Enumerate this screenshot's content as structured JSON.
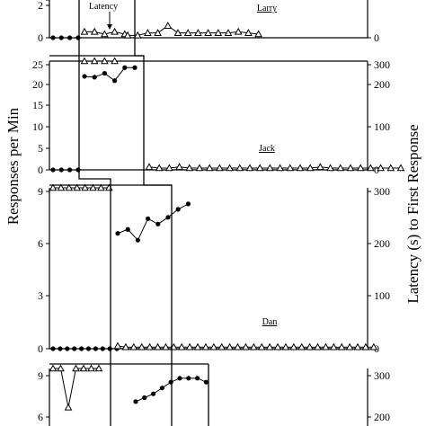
{
  "chart_data": [
    {
      "type": "line",
      "participant": "Larry",
      "left_axis": {
        "ylim": [
          0,
          4
        ],
        "ticks": [
          "0",
          "2"
        ]
      },
      "right_axis": {
        "ylim": [
          0,
          300
        ],
        "ticks": [
          "0"
        ]
      },
      "series": [
        {
          "name": "Responses per Min",
          "axis": "left",
          "marker": "circle",
          "segments": [
            [
              0,
              0,
              0,
              0
            ]
          ]
        },
        {
          "name": "Latency",
          "axis": "right",
          "marker": "triangle",
          "segments": [
            [
              25,
              25,
              15,
              25,
              15
            ],
            [
              10,
              10,
              20,
              20,
              50,
              20,
              20,
              20,
              20,
              20,
              20,
              25,
              20,
              15
            ]
          ]
        }
      ],
      "annotation": "Latency"
    },
    {
      "type": "line",
      "participant": "Jack",
      "left_axis": {
        "ylim": [
          0,
          25
        ],
        "ticks": [
          "0",
          "5",
          "10",
          "15",
          "20",
          "25"
        ]
      },
      "right_axis": {
        "ylim": [
          0,
          300
        ],
        "ticks": [
          "0",
          "100",
          "200",
          "300"
        ]
      },
      "series": [
        {
          "name": "Responses per Min",
          "axis": "left",
          "marker": "circle",
          "segments": [
            [
              0,
              0,
              0,
              0
            ],
            [
              21.5,
              21.3,
              22.2,
              20.5,
              23.5,
              23.5
            ]
          ]
        },
        {
          "name": "Latency",
          "axis": "right",
          "marker": "triangle",
          "segments": [
            [
              300,
              300,
              300,
              300
            ],
            [
              8,
              5,
              5,
              8,
              5,
              5,
              5,
              5,
              5,
              5,
              5,
              5,
              5,
              5,
              5,
              5,
              5,
              8,
              5,
              5,
              5,
              5,
              5,
              5,
              5,
              5
            ]
          ]
        }
      ]
    },
    {
      "type": "line",
      "participant": "Dan",
      "left_axis": {
        "ylim": [
          0,
          12
        ],
        "ticks": [
          "0",
          "3",
          "6",
          "9",
          "12"
        ]
      },
      "right_axis": {
        "ylim": [
          0,
          300
        ],
        "ticks": [
          "0",
          "100",
          "200",
          "300"
        ]
      },
      "series": [
        {
          "name": "Responses per Min",
          "axis": "left",
          "marker": "circle",
          "segments": [
            [
              0,
              0,
              0,
              0,
              0,
              0,
              0,
              0,
              0,
              0
            ],
            [
              8.6,
              8.9,
              8.1,
              9.7,
              9.3,
              9.8,
              10.4,
              10.8
            ]
          ]
        },
        {
          "name": "Latency",
          "axis": "right",
          "marker": "triangle",
          "segments": [
            [
              300,
              300,
              300,
              300,
              300,
              300,
              300,
              300
            ],
            [
              5,
              3,
              3,
              3,
              3,
              3,
              3,
              3,
              3,
              3,
              3,
              3,
              3,
              3,
              3,
              3,
              3,
              3,
              3,
              3,
              3,
              3,
              3,
              3,
              3,
              3,
              3,
              3,
              3,
              3,
              3,
              3,
              3
            ]
          ]
        }
      ]
    },
    {
      "type": "line",
      "participant": "",
      "left_axis": {
        "ylim": [
          3,
          9
        ],
        "ticks": [
          "6",
          "9"
        ]
      },
      "right_axis": {
        "ylim": [
          0,
          300
        ],
        "ticks": [
          "200",
          "300"
        ]
      },
      "series": [
        {
          "name": "Responses per Min",
          "axis": "left",
          "marker": "circle",
          "segments": [
            [
              7.3,
              7.5,
              7.7,
              8.0,
              8.3,
              8.5,
              8.5,
              8.5,
              8.3
            ]
          ]
        },
        {
          "name": "Latency",
          "axis": "right",
          "marker": "triangle",
          "segments": [
            [
              300,
              300,
              200,
              300,
              300,
              300,
              300
            ]
          ]
        }
      ]
    }
  ],
  "y_axis_left_title": "Responses per Min",
  "y_axis_right_title": "Latency (s) to First Response"
}
